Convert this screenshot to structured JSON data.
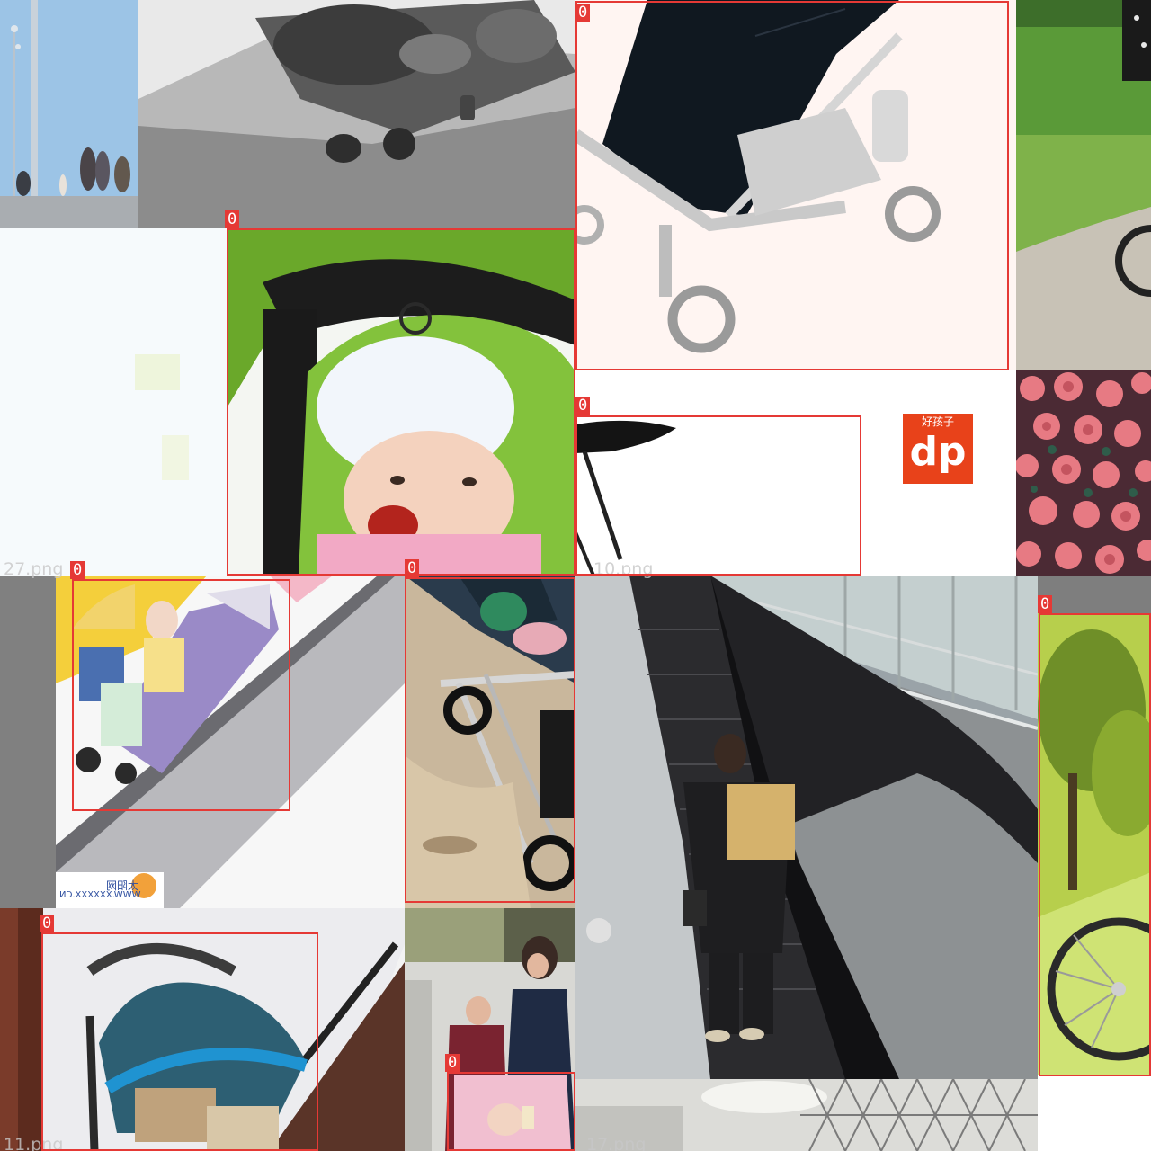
{
  "mosaic": {
    "tiles": [
      {
        "scene": "pier-people-sky"
      },
      {
        "scene": "grayscale-shoes-on-pavement"
      },
      {
        "scene": "stroller-black-canopy-product"
      },
      {
        "scene": "stroller-on-grass-path"
      },
      {
        "scene": "baby-in-green-stroller"
      },
      {
        "scene": "stroller-seat-product"
      },
      {
        "scene": "brand-logo"
      },
      {
        "scene": "pink-roses"
      },
      {
        "scene": "child-in-purple-stroller-escalator"
      },
      {
        "scene": "stroller-on-dirt-ground"
      },
      {
        "scene": "man-with-box-on-escalator"
      },
      {
        "scene": "stroller-wheel-park"
      },
      {
        "scene": "blue-canopy-stroller-indoors"
      },
      {
        "scene": "family-with-pink-stroller"
      },
      {
        "scene": "glass-ceiling-structure"
      }
    ],
    "filenames": [
      "27.png",
      "10.png",
      "11.png",
      "17.png"
    ],
    "boxes": [
      {
        "class_label": "0"
      },
      {
        "class_label": "0"
      },
      {
        "class_label": "0"
      },
      {
        "class_label": "0"
      },
      {
        "class_label": "0"
      },
      {
        "class_label": "0"
      },
      {
        "class_label": "0"
      },
      {
        "class_label": "0"
      },
      {
        "class_label": "0"
      }
    ],
    "logo_text": "dp",
    "logo_caption": "好孩子",
    "watermark_lines": [
      "WWW.XXXXXX.CN",
      "太阳网"
    ],
    "colors": {
      "box": "#e53935",
      "filename": "#c8c8c8",
      "logo_bg": "#e8421a"
    }
  }
}
